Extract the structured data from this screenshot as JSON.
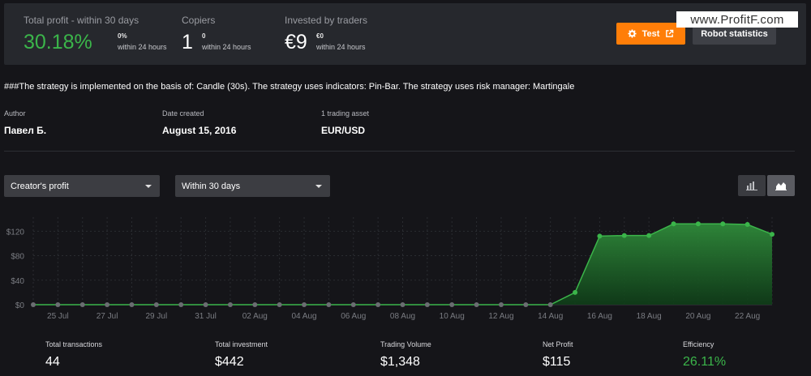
{
  "header": {
    "total_profit": {
      "label": "Total profit - within 30 days",
      "value": "30.18%",
      "change": "0%",
      "change_caption": "within 24 hours"
    },
    "copiers": {
      "label": "Copiers",
      "value": "1",
      "change": "0",
      "change_caption": "within 24 hours"
    },
    "invested": {
      "label": "Invested by traders",
      "value": "€9",
      "change": "€0",
      "change_caption": "within 24 hours"
    },
    "test_button": "Test",
    "robot_button": "Robot statistics",
    "watermark": "www.ProfitF.com"
  },
  "description": "###The strategy is implemented on the basis of: Candle (30s). The strategy uses indicators: Pin-Bar. The strategy uses risk manager: Martingale",
  "meta": {
    "author": {
      "label": "Author",
      "value": "Павел Б."
    },
    "date_created": {
      "label": "Date created",
      "value": "August 15, 2016"
    },
    "assets": {
      "label": "1 trading asset",
      "value": "EUR/USD"
    }
  },
  "controls": {
    "metric_select": "Creator's profit",
    "period_select": "Within 30 days"
  },
  "chart_data": {
    "type": "area",
    "x_ticks": [
      "25 Jul",
      "27 Jul",
      "29 Jul",
      "31 Jul",
      "02 Aug",
      "04 Aug",
      "06 Aug",
      "08 Aug",
      "10 Aug",
      "12 Aug",
      "14 Aug",
      "16 Aug",
      "18 Aug",
      "20 Aug",
      "22 Aug"
    ],
    "y_ticks": [
      "$0",
      "$40",
      "$80",
      "$120"
    ],
    "ylim": [
      0,
      135
    ],
    "grid": true,
    "color": "#3bb54a",
    "x": [
      "24 Jul",
      "25 Jul",
      "26 Jul",
      "27 Jul",
      "28 Jul",
      "29 Jul",
      "30 Jul",
      "31 Jul",
      "01 Aug",
      "02 Aug",
      "03 Aug",
      "04 Aug",
      "05 Aug",
      "06 Aug",
      "07 Aug",
      "08 Aug",
      "09 Aug",
      "10 Aug",
      "11 Aug",
      "12 Aug",
      "13 Aug",
      "14 Aug",
      "15 Aug",
      "16 Aug",
      "17 Aug",
      "18 Aug",
      "19 Aug",
      "20 Aug",
      "21 Aug",
      "22 Aug",
      "23 Aug"
    ],
    "values": [
      0,
      0,
      0,
      0,
      0,
      0,
      0,
      0,
      0,
      0,
      0,
      0,
      0,
      0,
      0,
      0,
      0,
      0,
      0,
      0,
      0,
      0,
      20,
      112,
      113,
      113,
      132,
      132,
      132,
      131,
      115
    ]
  },
  "footer": {
    "total_transactions": {
      "label": "Total transactions",
      "value": "44"
    },
    "total_investment": {
      "label": "Total investment",
      "value": "$442"
    },
    "trading_volume": {
      "label": "Trading Volume",
      "value": "$1,348"
    },
    "net_profit": {
      "label": "Net Profit",
      "value": "$115"
    },
    "efficiency": {
      "label": "Efficiency",
      "value": "26.11%"
    }
  }
}
